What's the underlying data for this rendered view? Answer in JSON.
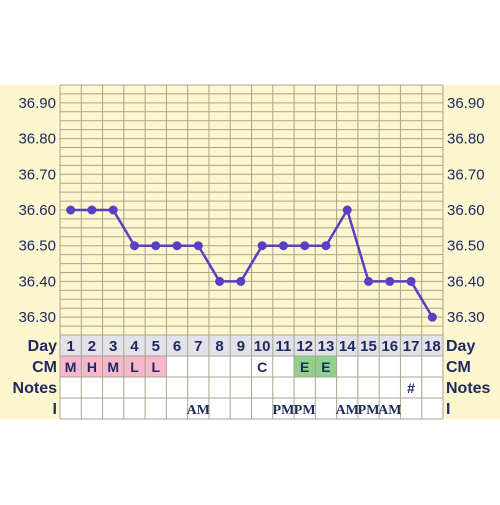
{
  "chart_data": {
    "type": "line",
    "x": [
      1,
      2,
      3,
      4,
      5,
      6,
      7,
      8,
      9,
      10,
      11,
      12,
      13,
      14,
      15,
      16,
      17,
      18
    ],
    "series": [
      {
        "values": [
          36.6,
          36.6,
          36.6,
          36.5,
          36.5,
          36.5,
          36.5,
          36.4,
          36.4,
          36.5,
          36.5,
          36.5,
          36.5,
          36.6,
          36.4,
          36.4,
          36.4,
          36.3
        ]
      }
    ],
    "ylim": [
      36.25,
      36.95
    ],
    "yticks": [
      "36.30",
      "36.40",
      "36.50",
      "36.60",
      "36.70",
      "36.80",
      "36.90"
    ],
    "ylabel": "",
    "xlabel": "",
    "grid": true,
    "rows": {
      "day_label": "Day",
      "cm_label": "CM",
      "notes_label": "Notes",
      "i_label": "I"
    },
    "cm": [
      {
        "day": 1,
        "text": "M",
        "color": "#f6b8cb"
      },
      {
        "day": 2,
        "text": "H",
        "color": "#f6b8cb"
      },
      {
        "day": 3,
        "text": "M",
        "color": "#f6b8cb"
      },
      {
        "day": 4,
        "text": "L",
        "color": "#f6b8cb"
      },
      {
        "day": 5,
        "text": "L",
        "color": "#f6b8cb"
      },
      {
        "day": 10,
        "text": "C",
        "color": ""
      },
      {
        "day": 12,
        "text": "E",
        "color": "#8fd18a"
      },
      {
        "day": 13,
        "text": "E",
        "color": "#8fd18a"
      }
    ],
    "notes": [
      {
        "day": 17,
        "text": "#"
      }
    ],
    "i_row": [
      {
        "day": 7,
        "text": "AM"
      },
      {
        "day": 11,
        "text": "PM"
      },
      {
        "day": 12,
        "text": "PM"
      },
      {
        "day": 14,
        "text": "AM"
      },
      {
        "day": 15,
        "text": "PM"
      },
      {
        "day": 16,
        "text": "AM"
      }
    ]
  },
  "colors": {
    "background": "#fdf6cf",
    "grid": "#a9a58d",
    "line": "#5840c4",
    "marker": "#5840c4",
    "day_row": "#e2e2e8",
    "table_bg": "#ffffff"
  }
}
